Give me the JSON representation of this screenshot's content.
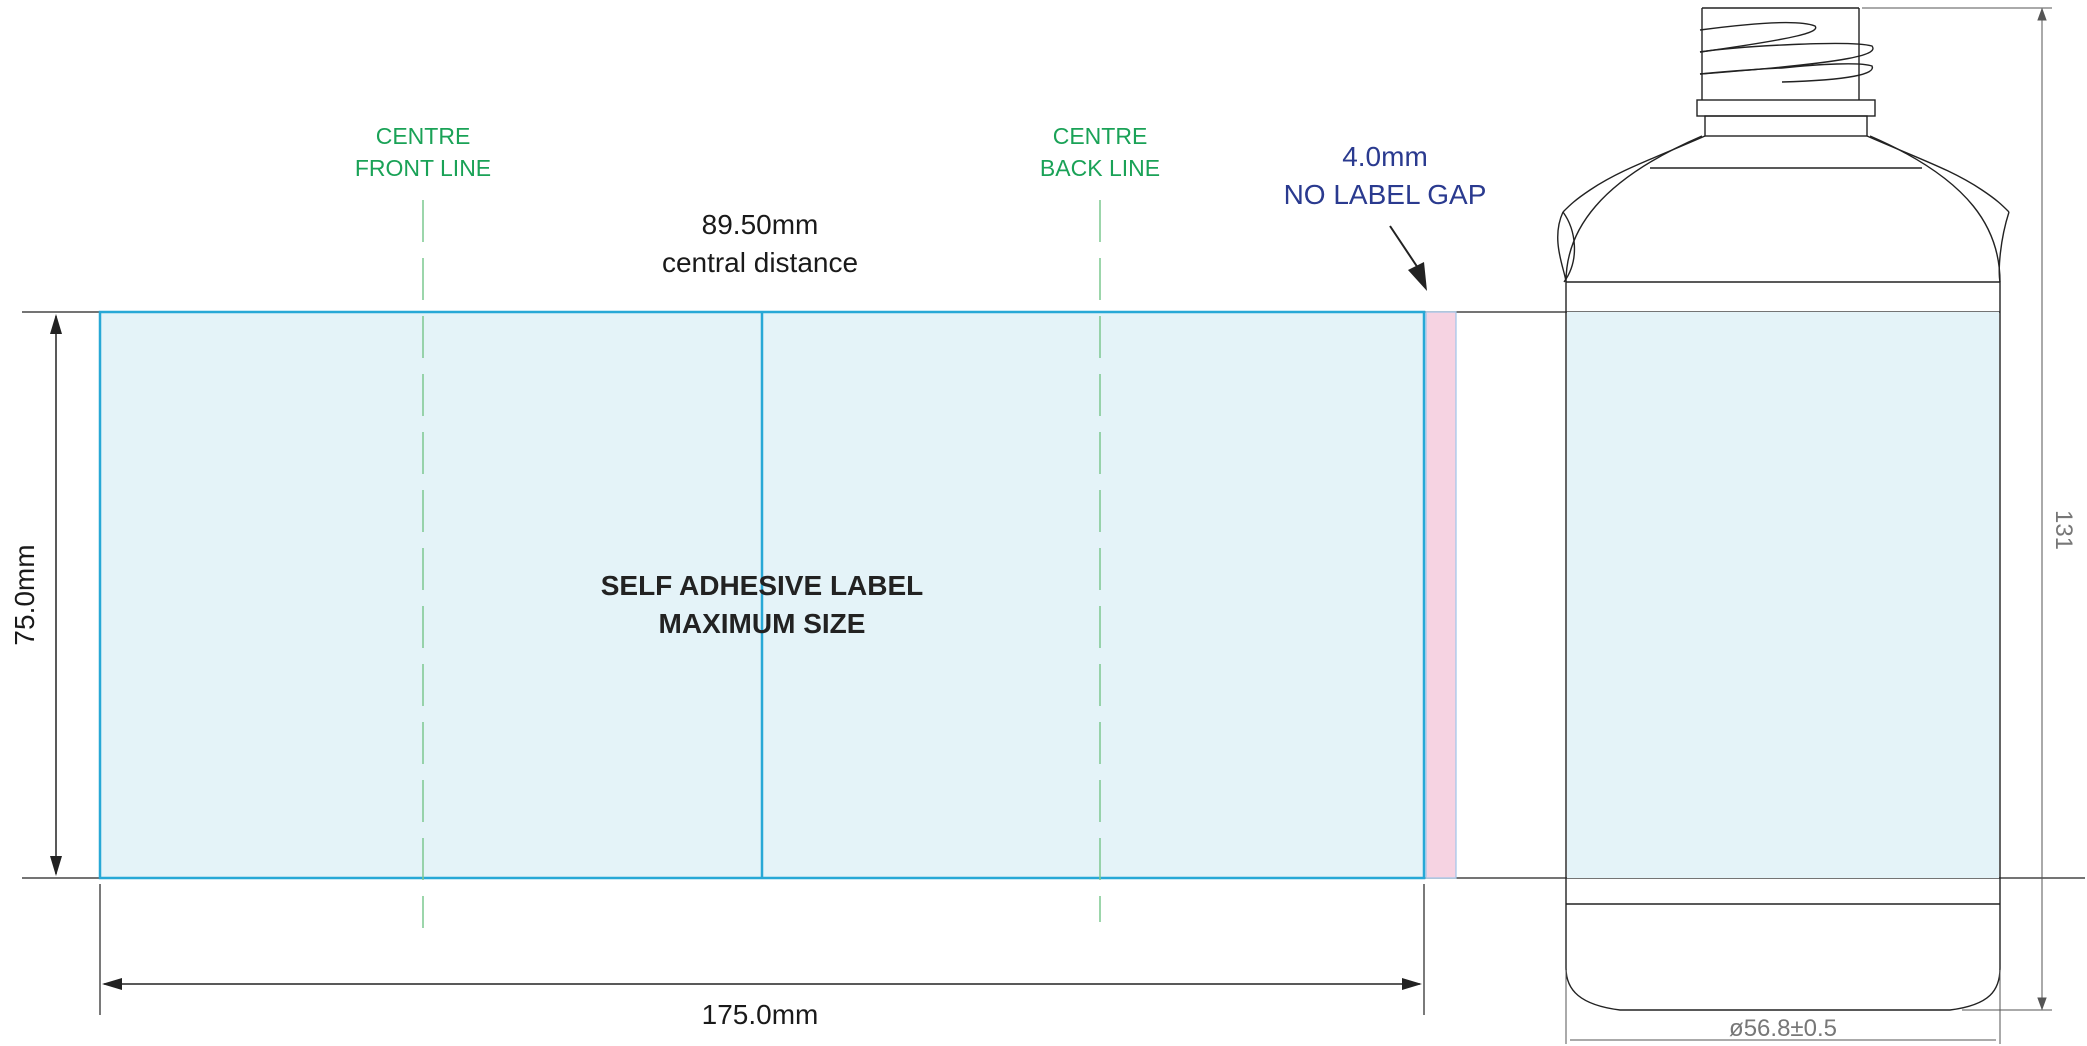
{
  "colors": {
    "label_fill": "#e4f3f8",
    "label_stroke": "#27a8d6",
    "gap_fill": "#f6d3e2",
    "centre_line": "#1aa257",
    "gap_text": "#2a3a8f",
    "outline": "#222222"
  },
  "annotations": {
    "centre_front_line": [
      "CENTRE",
      "FRONT LINE"
    ],
    "centre_back_line": [
      "CENTRE",
      "BACK LINE"
    ],
    "central_distance": [
      "89.50mm",
      "central distance"
    ],
    "no_label_gap": [
      "4.0mm",
      "NO LABEL GAP"
    ]
  },
  "label": {
    "title": [
      "SELF ADHESIVE LABEL",
      "MAXIMUM SIZE"
    ]
  },
  "dimensions": {
    "height": "75.0mm",
    "width": "175.0mm",
    "bottle_height": "131",
    "bottle_diameter": "ø56.8±0.5"
  },
  "icons": {
    "gap_arrow": "arrow-down-right-icon"
  }
}
